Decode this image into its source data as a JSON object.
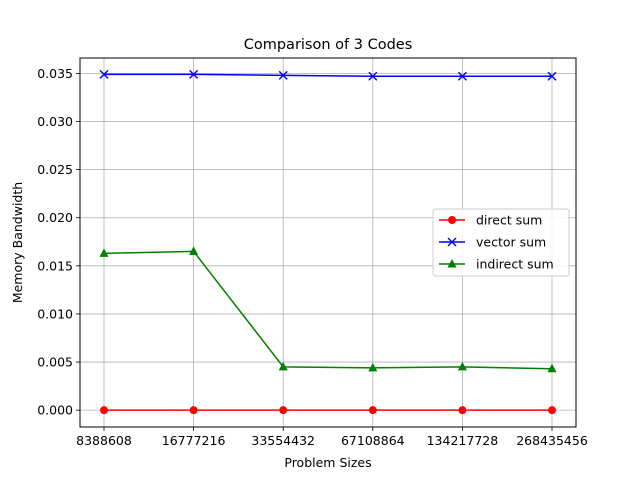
{
  "chart_data": {
    "type": "line",
    "title": "Comparison of 3 Codes",
    "xlabel": "Problem Sizes",
    "ylabel": "Memory Bandwidth",
    "categories": [
      "8388608",
      "16777216",
      "33554432",
      "67108864",
      "134217728",
      "268435456"
    ],
    "ylim": [
      -0.00175,
      0.0366
    ],
    "yticks": [
      0.0,
      0.005,
      0.01,
      0.015,
      0.02,
      0.025,
      0.03,
      0.035
    ],
    "ytick_labels": [
      "0.000",
      "0.005",
      "0.010",
      "0.015",
      "0.020",
      "0.025",
      "0.030",
      "0.035"
    ],
    "grid": true,
    "legend_position": "center-right",
    "series": [
      {
        "name": "direct sum",
        "color": "#ff0000",
        "marker": "circle",
        "values": [
          0.0,
          0.0,
          0.0,
          0.0,
          0.0,
          0.0
        ]
      },
      {
        "name": "vector sum",
        "color": "#0000ff",
        "marker": "x",
        "values": [
          0.0349,
          0.0349,
          0.0348,
          0.0347,
          0.0347,
          0.0347
        ]
      },
      {
        "name": "indirect sum",
        "color": "#008000",
        "marker": "triangle",
        "values": [
          0.0163,
          0.0165,
          0.0045,
          0.0044,
          0.0045,
          0.0043
        ]
      }
    ]
  }
}
